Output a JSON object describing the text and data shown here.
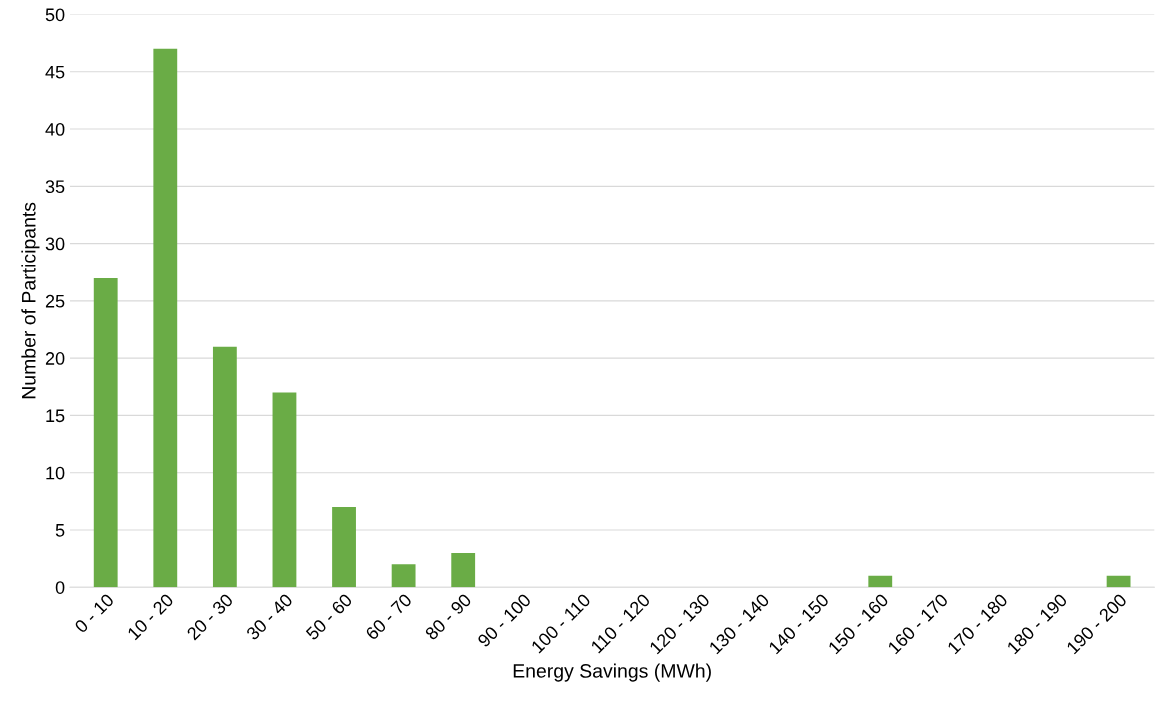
{
  "chart_data": {
    "type": "bar",
    "xlabel": "Energy Savings (MWh)",
    "ylabel": "Number of Participants",
    "categories": [
      "0 - 10",
      "10 - 20",
      "20 - 30",
      "30 - 40",
      "50 - 60",
      "60 - 70",
      "80 - 90",
      "90 - 100",
      "100 - 110",
      "110 - 120",
      "120 - 130",
      "130 - 140",
      "140 - 150",
      "150 - 160",
      "160 - 170",
      "170 - 180",
      "180 - 190",
      "190 - 200"
    ],
    "values": [
      27,
      47,
      21,
      17,
      7,
      2,
      3,
      0,
      0,
      0,
      0,
      0,
      0,
      1,
      0,
      0,
      0,
      1
    ],
    "color": "#6aac46",
    "ylim": [
      0,
      50
    ],
    "yticks": [
      0,
      5,
      10,
      15,
      20,
      25,
      30,
      35,
      40,
      45,
      50
    ],
    "grid": "y"
  }
}
